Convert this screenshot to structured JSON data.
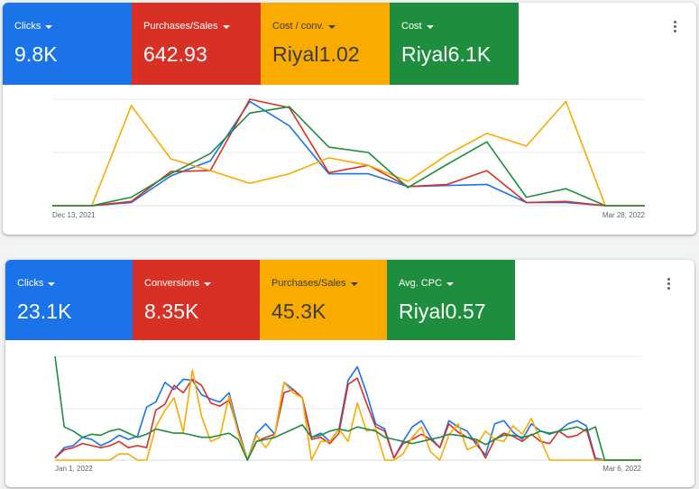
{
  "cards": [
    {
      "tiles": [
        {
          "label": "Clicks",
          "value": "9.8K",
          "color": "#1a73e8",
          "text": "white"
        },
        {
          "label": "Purchases/Sales",
          "value": "642.93",
          "color": "#d93025",
          "text": "white"
        },
        {
          "label": "Cost / conv.",
          "value": "Riyal1.02",
          "color": "#f9ab00",
          "text": "dark"
        },
        {
          "label": "Cost",
          "value": "Riyal6.1K",
          "color": "#1e8e3e",
          "text": "white"
        }
      ],
      "more_icon": "more-vert-icon",
      "chart_data": {
        "type": "line",
        "x_start_label": "Dec 13, 2021",
        "x_end_label": "Mar 28, 2022",
        "ylim": [
          0,
          100
        ],
        "grid": true,
        "series": [
          {
            "color": "#1a73e8",
            "values": [
              0,
              0,
              3,
              28,
              42,
              98,
              75,
              30,
              30,
              18,
              19,
              20,
              3,
              3,
              0,
              0
            ]
          },
          {
            "color": "#d93025",
            "values": [
              0,
              0,
              4,
              32,
              33,
              100,
              92,
              31,
              38,
              18,
              20,
              33,
              3,
              4,
              0,
              0
            ]
          },
          {
            "color": "#f9ab00",
            "values": [
              0,
              0,
              94,
              44,
              33,
              21,
              30,
              45,
              38,
              23,
              48,
              68,
              56,
              98,
              0,
              0
            ]
          },
          {
            "color": "#1e8e3e",
            "values": [
              0,
              0,
              8,
              30,
              49,
              87,
              93,
              55,
              50,
              17,
              39,
              60,
              8,
              16,
              0,
              0
            ]
          }
        ]
      }
    },
    {
      "tiles": [
        {
          "label": "Clicks",
          "value": "23.1K",
          "color": "#1a73e8",
          "text": "white"
        },
        {
          "label": "Conversions",
          "value": "8.35K",
          "color": "#d93025",
          "text": "white"
        },
        {
          "label": "Purchases/Sales",
          "value": "45.3K",
          "color": "#f9ab00",
          "text": "dark"
        },
        {
          "label": "Avg. CPC",
          "value": "Riyal0.57",
          "color": "#1e8e3e",
          "text": "white"
        }
      ],
      "more_icon": "more-vert-icon",
      "chart_data": {
        "type": "line",
        "x_start_label": "Jan 1, 2022",
        "x_end_label": "Mar 6, 2022",
        "ylim": [
          0,
          100
        ],
        "grid": true,
        "series": [
          {
            "color": "#1a73e8",
            "values": [
              2,
              12,
              14,
              22,
              20,
              14,
              18,
              24,
              20,
              23,
              51,
              56,
              75,
              68,
              78,
              77,
              63,
              59,
              56,
              65,
              30,
              0,
              26,
              35,
              25,
              75,
              68,
              60,
              22,
              26,
              18,
              30,
              77,
              90,
              65,
              35,
              30,
              2,
              18,
              32,
              38,
              22,
              12,
              38,
              32,
              28,
              15,
              5,
              35,
              38,
              27,
              20,
              35,
              28,
              25,
              28,
              35,
              38,
              33,
              2,
              0,
              0,
              0,
              0,
              0
            ]
          },
          {
            "color": "#d93025",
            "values": [
              2,
              10,
              12,
              16,
              14,
              12,
              14,
              18,
              12,
              14,
              12,
              48,
              54,
              72,
              65,
              78,
              72,
              55,
              52,
              58,
              28,
              0,
              18,
              22,
              25,
              65,
              68,
              60,
              20,
              22,
              16,
              26,
              73,
              79,
              55,
              32,
              28,
              2,
              16,
              20,
              25,
              20,
              12,
              35,
              27,
              22,
              18,
              2,
              20,
              26,
              23,
              18,
              25,
              18,
              16,
              28,
              22,
              24,
              30,
              0,
              0,
              0,
              0,
              0,
              0
            ]
          },
          {
            "color": "#f9ab00",
            "values": [
              0,
              0,
              0,
              0,
              0,
              0,
              0,
              6,
              6,
              0,
              0,
              32,
              48,
              60,
              27,
              87,
              42,
              18,
              22,
              62,
              26,
              0,
              24,
              12,
              25,
              75,
              65,
              60,
              0,
              18,
              18,
              30,
              18,
              55,
              28,
              30,
              0,
              0,
              6,
              22,
              32,
              8,
              0,
              24,
              35,
              10,
              14,
              28,
              20,
              18,
              33,
              25,
              40,
              20,
              0,
              0,
              0,
              0,
              0,
              0,
              0,
              0,
              0,
              0,
              0
            ]
          },
          {
            "color": "#1e8e3e",
            "values": [
              100,
              32,
              28,
              22,
              25,
              24,
              28,
              30,
              26,
              22,
              25,
              30,
              28,
              26,
              26,
              24,
              22,
              22,
              24,
              26,
              20,
              0,
              18,
              20,
              22,
              26,
              30,
              34,
              22,
              24,
              28,
              30,
              28,
              32,
              30,
              28,
              22,
              20,
              18,
              16,
              18,
              20,
              22,
              25,
              24,
              22,
              20,
              15,
              20,
              24,
              24,
              22,
              24,
              28,
              26,
              28,
              30,
              32,
              28,
              32,
              0,
              0,
              0,
              0,
              0
            ]
          }
        ]
      }
    }
  ]
}
